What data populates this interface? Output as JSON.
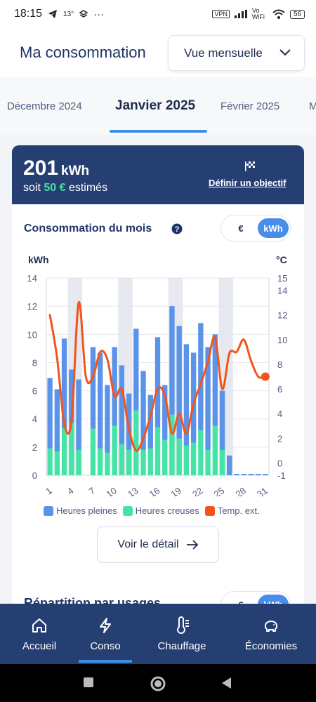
{
  "status_bar": {
    "time": "18:15",
    "temp": "13°",
    "dots": "···",
    "vpn": "VPN",
    "volte": "Vo WiFi",
    "battery": "56"
  },
  "header": {
    "title": "Ma consommation",
    "view_select": "Vue mensuelle"
  },
  "months": {
    "prev": "Décembre 2024",
    "current": "Janvier 2025",
    "next": "Février 2025",
    "next2": "M"
  },
  "summary": {
    "value": "201",
    "unit": "kWh",
    "estimate_prefix": "soit",
    "estimate_amount": "50 €",
    "estimate_suffix": "estimés",
    "goal_link": "Définir un objectif"
  },
  "section": {
    "title": "Consommation du mois",
    "toggle_eur": "€",
    "toggle_kwh": "kWh"
  },
  "chart_data": {
    "type": "bar",
    "y_left_label": "kWh",
    "y_right_label": "°C",
    "y_left_ticks": [
      0,
      2,
      4,
      6,
      8,
      10,
      12,
      14
    ],
    "y_right_ticks": [
      -1,
      0,
      2,
      4,
      6,
      8,
      10,
      12,
      14,
      15
    ],
    "x_ticks": [
      "1",
      "4",
      "7",
      "10",
      "13",
      "16",
      "19",
      "22",
      "25",
      "28",
      "31"
    ],
    "ylim_left": [
      0,
      14
    ],
    "ylim_right": [
      -1,
      15
    ],
    "weekend_days": [
      4,
      11,
      18,
      25
    ],
    "days": [
      1,
      2,
      3,
      4,
      5,
      6,
      7,
      8,
      9,
      10,
      11,
      12,
      13,
      14,
      15,
      16,
      17,
      18,
      19,
      20,
      21,
      22,
      23,
      24,
      25,
      26,
      27,
      28,
      29,
      30,
      31
    ],
    "series": [
      {
        "name": "Heures pleines",
        "color": "#5b93e8",
        "values": [
          5.0,
          4.4,
          6.4,
          3.8,
          5.0,
          0,
          5.8,
          6.8,
          4.8,
          5.6,
          5.6,
          4.0,
          5.8,
          5.6,
          3.8,
          6.4,
          3.9,
          7.7,
          8.0,
          7.2,
          6.4,
          7.6,
          7.3,
          6.5,
          4.2,
          1.4,
          0.1,
          0.1,
          0.1,
          0.1,
          0
        ]
      },
      {
        "name": "Heures creuses",
        "color": "#45e3a6",
        "values": [
          1.9,
          1.7,
          3.3,
          3.7,
          1.8,
          0,
          3.3,
          1.9,
          1.6,
          3.5,
          2.2,
          1.8,
          4.6,
          1.8,
          1.9,
          3.4,
          2.5,
          4.3,
          2.6,
          2.1,
          2.3,
          3.2,
          1.8,
          3.5,
          1.8,
          0,
          0,
          0,
          0,
          0,
          0
        ]
      },
      {
        "name": "Temp. ext.",
        "color": "#f2541b",
        "type": "line",
        "values": [
          12,
          8.5,
          3.2,
          3.4,
          13,
          7.0,
          7.0,
          9.0,
          8.4,
          5.4,
          6.0,
          2.8,
          1.0,
          2.0,
          3.8,
          6.0,
          5.5,
          2.4,
          4.0,
          2.4,
          4.8,
          6.4,
          8.2,
          10.2,
          6.0,
          8.9,
          9.0,
          10.0,
          8.3,
          7.0,
          7.0
        ]
      }
    ]
  },
  "legend": {
    "hp": "Heures pleines",
    "hc": "Heures creuses",
    "temp": "Temp. ext."
  },
  "detail_button": "Voir le détail",
  "card2": {
    "title": "Répartition par usages",
    "toggle_eur": "€",
    "toggle_kwh": "kWh"
  },
  "nav": {
    "home": "Accueil",
    "conso": "Conso",
    "heating": "Chauffage",
    "savings": "Économies"
  }
}
